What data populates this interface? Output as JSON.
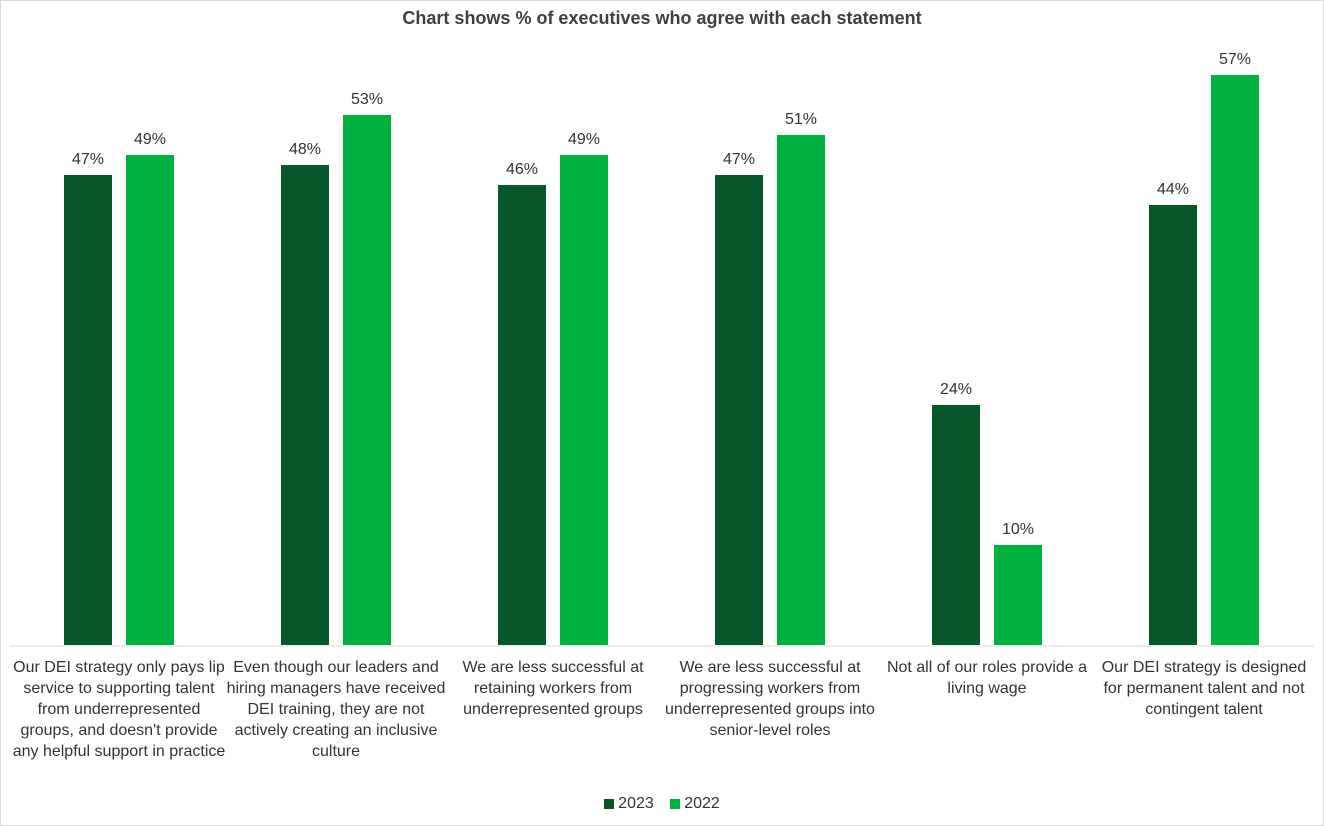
{
  "chart_data": {
    "type": "bar",
    "title": "Chart shows % of executives  who agree with each statement",
    "categories": [
      "Our DEI strategy only pays lip service to supporting talent from underrepresented groups, and doesn't provide any helpful support in practice",
      "Even though our leaders and hiring managers have received DEI training, they are not actively creating an inclusive culture",
      "We are less successful at retaining workers from underrepresented groups",
      "We are less successful at progressing workers from underrepresented groups into senior-level roles",
      "Not all of our roles provide a living wage",
      "Our DEI strategy is designed for permanent talent and not contingent talent"
    ],
    "series": [
      {
        "name": "2023",
        "color": "#07572b",
        "values": [
          47,
          48,
          46,
          47,
          24,
          44
        ],
        "labels": [
          "47%",
          "48%",
          "46%",
          "47%",
          "24%",
          "44%"
        ]
      },
      {
        "name": "2022",
        "color": "#00b140",
        "values": [
          49,
          53,
          49,
          51,
          10,
          57
        ],
        "labels": [
          "49%",
          "53%",
          "49%",
          "51%",
          "10%",
          "57%"
        ]
      }
    ],
    "ylim": [
      0,
      60
    ],
    "grid": false,
    "legend_position": "bottom"
  }
}
